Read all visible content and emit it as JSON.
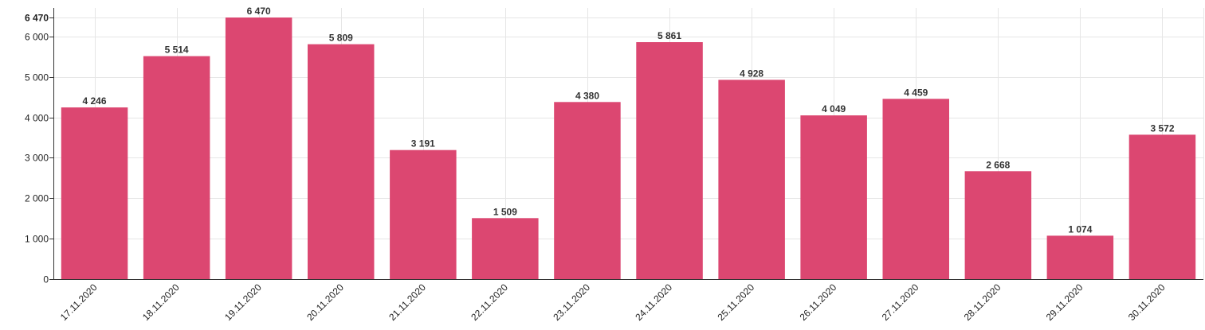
{
  "chart_data": {
    "type": "bar",
    "categories": [
      "17.11.2020",
      "18.11.2020",
      "19.11.2020",
      "20.11.2020",
      "21.11.2020",
      "22.11.2020",
      "23.11.2020",
      "24.11.2020",
      "25.11.2020",
      "26.11.2020",
      "27.11.2020",
      "28.11.2020",
      "29.11.2020",
      "30.11.2020"
    ],
    "values": [
      4246,
      5514,
      6470,
      5809,
      3191,
      1509,
      4380,
      5861,
      4928,
      4049,
      4459,
      2668,
      1074,
      3572
    ],
    "value_labels": [
      "4 246",
      "5 514",
      "6 470",
      "5 809",
      "3 191",
      "1 509",
      "4 380",
      "5 861",
      "4 928",
      "4 049",
      "4 459",
      "2 668",
      "1 074",
      "3 572"
    ],
    "y_ticks": [
      0,
      1000,
      2000,
      3000,
      4000,
      5000,
      6000
    ],
    "y_tick_labels": [
      "0",
      "1 000",
      "2 000",
      "3 000",
      "4 000",
      "5 000",
      "6 000"
    ],
    "y_max_label": "6 470",
    "ylim": [
      0,
      6470
    ],
    "title": "",
    "xlabel": "",
    "ylabel": "",
    "grid": true,
    "bar_color": "#dc4771"
  }
}
